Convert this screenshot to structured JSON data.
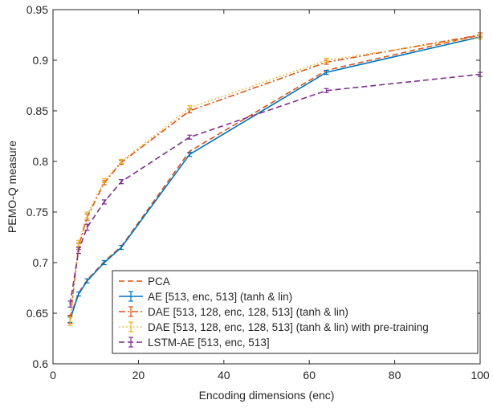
{
  "chart_data": {
    "type": "line",
    "xlabel": "Encoding dimensions (enc)",
    "ylabel": "PEMO-Q measure",
    "xlim": [
      0,
      100
    ],
    "ylim": [
      0.6,
      0.95
    ],
    "xticks": [
      0,
      20,
      40,
      60,
      80,
      100
    ],
    "yticks": [
      0.6,
      0.65,
      0.7,
      0.75,
      0.8,
      0.85,
      0.9,
      0.95
    ],
    "xtick_labels": [
      "0",
      "20",
      "40",
      "60",
      "80",
      "100"
    ],
    "ytick_labels": [
      "0.6",
      "0.65",
      "0.7",
      "0.75",
      "0.8",
      "0.85",
      "0.9",
      "0.95"
    ],
    "grid": false,
    "legend_position": "bottom-right",
    "series": [
      {
        "name": "PCA",
        "color": "#d95319",
        "style": "dashed",
        "errorbars": false,
        "x": [
          4,
          6,
          8,
          12,
          16,
          32,
          64,
          100
        ],
        "y": [
          0.646,
          0.67,
          0.683,
          0.701,
          0.716,
          0.81,
          0.89,
          0.925
        ]
      },
      {
        "name": "AE [513, enc, 513] (tanh & lin)",
        "color": "#0072bd",
        "style": "solid",
        "errorbars": true,
        "x": [
          4,
          6,
          8,
          12,
          16,
          32,
          64,
          100
        ],
        "y": [
          0.644,
          0.669,
          0.682,
          0.7,
          0.715,
          0.807,
          0.888,
          0.923
        ],
        "err": [
          0.003,
          0.002,
          0.002,
          0.002,
          0.002,
          0.002,
          0.002,
          0.002
        ]
      },
      {
        "name": "DAE [513, 128, enc, 128, 513] (tanh & lin)",
        "color": "#d95319",
        "style": "dashdot",
        "errorbars": true,
        "x": [
          4,
          6,
          8,
          12,
          16,
          32,
          64,
          100
        ],
        "y": [
          0.644,
          0.716,
          0.745,
          0.779,
          0.799,
          0.85,
          0.898,
          0.925
        ],
        "err": [
          0.004,
          0.003,
          0.003,
          0.002,
          0.002,
          0.002,
          0.002,
          0.002
        ]
      },
      {
        "name": "DAE [513, 128, enc, 128, 513] (tanh & lin) with pre-training",
        "color": "#edb120",
        "style": "dotted",
        "errorbars": true,
        "x": [
          4,
          6,
          8,
          12,
          16,
          32,
          64,
          100
        ],
        "y": [
          0.642,
          0.719,
          0.747,
          0.781,
          0.8,
          0.853,
          0.9,
          0.923
        ],
        "err": [
          0.004,
          0.003,
          0.003,
          0.002,
          0.002,
          0.002,
          0.002,
          0.002
        ]
      },
      {
        "name": "LSTM-AE [513, enc, 513]",
        "color": "#7e2f8e",
        "style": "dashed",
        "errorbars": true,
        "x": [
          4,
          6,
          8,
          12,
          16,
          32,
          64,
          100
        ],
        "y": [
          0.659,
          0.712,
          0.735,
          0.76,
          0.78,
          0.824,
          0.87,
          0.886
        ],
        "err": [
          0.003,
          0.003,
          0.003,
          0.002,
          0.002,
          0.002,
          0.002,
          0.002
        ]
      }
    ]
  }
}
